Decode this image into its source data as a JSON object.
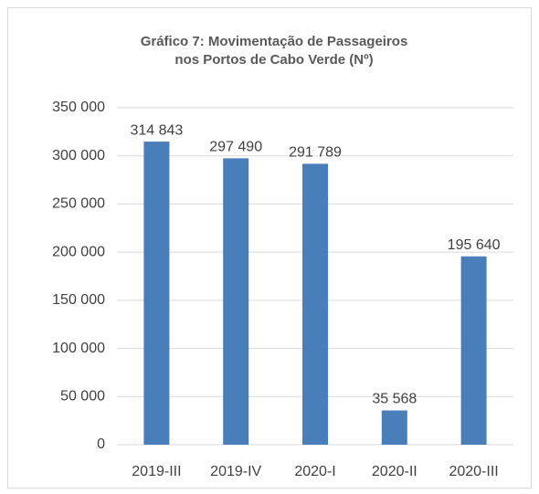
{
  "chart_data": {
    "type": "bar",
    "title": [
      "Gráfico 7: Movimentação de Passageiros",
      "nos Portos de Cabo Verde (Nº)"
    ],
    "categories": [
      "2019-III",
      "2019-IV",
      "2020-I",
      "2020-II",
      "2020-III"
    ],
    "values": [
      314843,
      297490,
      291789,
      35568,
      195640
    ],
    "value_labels": [
      "314 843",
      "297 490",
      "291 789",
      "35 568",
      "195 640"
    ],
    "color": "#4a7ebb",
    "ylim": [
      0,
      350000
    ],
    "yticks": [
      0,
      {
        "value": 50000,
        "label": "50 000"
      },
      {
        "value": 100000,
        "label": "100 000"
      },
      {
        "value": 150000,
        "label": "150 000"
      },
      {
        "value": 200000,
        "label": "200 000"
      },
      {
        "value": 250000,
        "label": "250 000"
      },
      {
        "value": 300000,
        "label": "300 000"
      },
      {
        "value": 350000,
        "label": "350 000"
      }
    ],
    "grid": true
  }
}
